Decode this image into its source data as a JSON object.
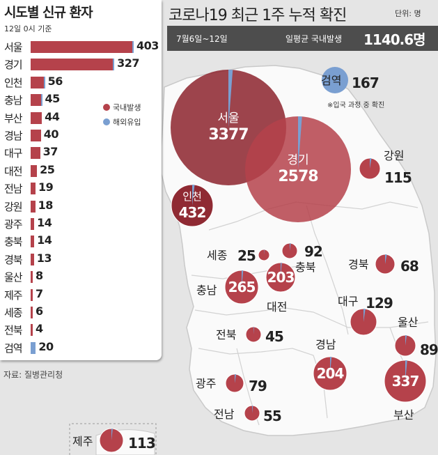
{
  "chart_data": [
    {
      "type": "bar",
      "title": "시도별 신규 환자",
      "subtitle": "12일 0시 기준",
      "categories": [
        "서울",
        "경기",
        "인천",
        "충남",
        "부산",
        "경남",
        "대구",
        "대전",
        "전남",
        "강원",
        "광주",
        "충북",
        "경북",
        "울산",
        "제주",
        "세종",
        "전북",
        "검역"
      ],
      "values": [
        403,
        327,
        56,
        45,
        44,
        40,
        37,
        25,
        19,
        18,
        14,
        14,
        13,
        8,
        7,
        6,
        4,
        20
      ],
      "series": [
        {
          "name": "국내발생",
          "values": [
            400,
            324,
            54,
            44,
            44,
            40,
            37,
            25,
            19,
            18,
            14,
            14,
            13,
            8,
            7,
            6,
            4,
            0
          ]
        },
        {
          "name": "해외유입",
          "values": [
            3,
            3,
            2,
            1,
            0,
            0,
            0,
            0,
            0,
            0,
            0,
            0,
            0,
            0,
            0,
            0,
            0,
            20
          ]
        }
      ],
      "legend": [
        "국내발생",
        "해외유입"
      ],
      "legend_position": "right"
    },
    {
      "type": "bubble-map",
      "title": "코로나19 최근 1주 누적 확진",
      "unit": "단위: 명",
      "period": "7월6일~12일",
      "daily_avg_label": "일평균 국내발생",
      "daily_avg_value": "1140.6명",
      "note": "※입국 과정 중 확진",
      "regions": [
        {
          "name": "서울",
          "value": 3377,
          "overseas": 40
        },
        {
          "name": "경기",
          "value": 2578,
          "overseas": 30
        },
        {
          "name": "인천",
          "value": 432,
          "overseas": 8
        },
        {
          "name": "검역",
          "value": 167,
          "overseas": 167
        },
        {
          "name": "강원",
          "value": 115,
          "overseas": 3
        },
        {
          "name": "세종",
          "value": 25,
          "overseas": 0
        },
        {
          "name": "충북",
          "value": 92,
          "overseas": 2
        },
        {
          "name": "경북",
          "value": 68,
          "overseas": 2
        },
        {
          "name": "충남",
          "value": 265,
          "overseas": 4
        },
        {
          "name": "대전",
          "value": 203,
          "overseas": 2
        },
        {
          "name": "대구",
          "value": 129,
          "overseas": 3
        },
        {
          "name": "전북",
          "value": 45,
          "overseas": 0
        },
        {
          "name": "울산",
          "value": 89,
          "overseas": 2
        },
        {
          "name": "경남",
          "value": 204,
          "overseas": 3
        },
        {
          "name": "부산",
          "value": 337,
          "overseas": 5
        },
        {
          "name": "광주",
          "value": 79,
          "overseas": 2
        },
        {
          "name": "전남",
          "value": 55,
          "overseas": 1
        },
        {
          "name": "제주",
          "value": 113,
          "overseas": 2
        }
      ]
    }
  ],
  "source": "자료: 질병관리청",
  "colors": {
    "domestic": "#b5424b",
    "overseas": "#7a9fd1",
    "dark_circle": "#8f2a33",
    "info_box": "#4d4d4d"
  }
}
